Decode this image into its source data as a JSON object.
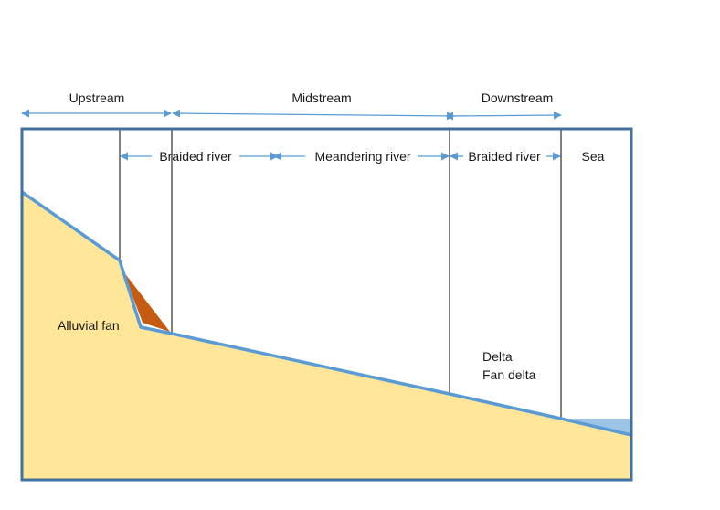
{
  "zones": {
    "upstream": "Upstream",
    "midstream": "Midstream",
    "downstream": "Downstream"
  },
  "segments": {
    "braided_river_1": "Braided river",
    "meandering_river": "Meandering river",
    "braided_river_2": "Braided river",
    "sea": "Sea"
  },
  "deposits": {
    "alluvial_fan": "Alluvial fan",
    "delta": "Delta",
    "fan_delta": "Fan delta"
  },
  "colors": {
    "sediment_fill": "#ffe699",
    "profile_line": "#5b9bd5",
    "frame_border": "#41719c",
    "fan_wedge": "#c55a11",
    "sea_water": "#9dc3e6",
    "divider": "#000000"
  }
}
